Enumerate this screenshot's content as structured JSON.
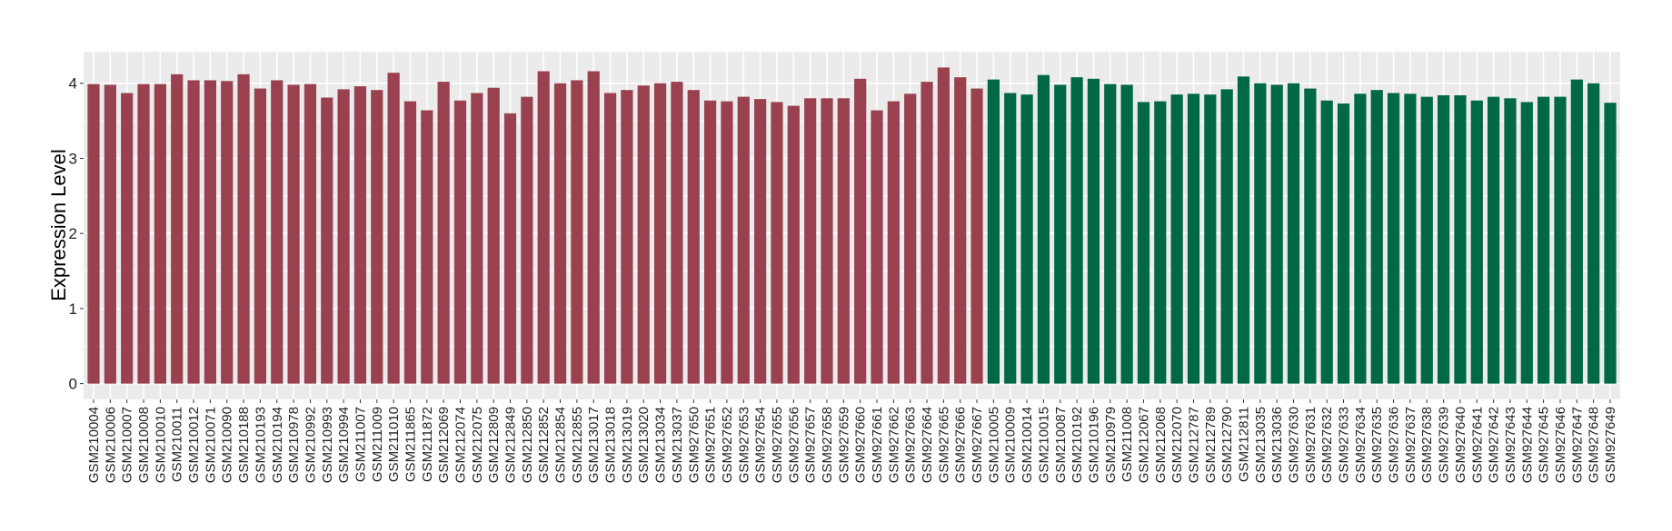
{
  "chart_data": {
    "type": "bar",
    "title": "",
    "xlabel": "",
    "ylabel": "Expression Level",
    "ylim": [
      -0.21,
      4.42
    ],
    "yticks": [
      0,
      1,
      2,
      3,
      4
    ],
    "grid": true,
    "legend": "none",
    "colors": {
      "group1": "#9A4150",
      "group2": "#006845",
      "panel": "#EBEBEB",
      "grid": "#FFFFFF"
    },
    "categories": [
      "GSM210004",
      "GSM210006",
      "GSM210007",
      "GSM210008",
      "GSM210010",
      "GSM210011",
      "GSM210012",
      "GSM210071",
      "GSM210090",
      "GSM210188",
      "GSM210193",
      "GSM210194",
      "GSM210978",
      "GSM210992",
      "GSM210993",
      "GSM210994",
      "GSM211007",
      "GSM211009",
      "GSM211010",
      "GSM211865",
      "GSM211872",
      "GSM212069",
      "GSM212074",
      "GSM212075",
      "GSM212809",
      "GSM212849",
      "GSM212850",
      "GSM212852",
      "GSM212854",
      "GSM212855",
      "GSM213017",
      "GSM213018",
      "GSM213019",
      "GSM213020",
      "GSM213034",
      "GSM213037",
      "GSM927650",
      "GSM927651",
      "GSM927652",
      "GSM927653",
      "GSM927654",
      "GSM927655",
      "GSM927656",
      "GSM927657",
      "GSM927658",
      "GSM927659",
      "GSM927660",
      "GSM927661",
      "GSM927662",
      "GSM927663",
      "GSM927664",
      "GSM927665",
      "GSM927666",
      "GSM927667",
      "GSM210005",
      "GSM210009",
      "GSM210014",
      "GSM210015",
      "GSM210087",
      "GSM210192",
      "GSM210196",
      "GSM210979",
      "GSM211008",
      "GSM212067",
      "GSM212068",
      "GSM212070",
      "GSM212787",
      "GSM212789",
      "GSM212790",
      "GSM212811",
      "GSM213035",
      "GSM213036",
      "GSM927630",
      "GSM927631",
      "GSM927632",
      "GSM927633",
      "GSM927634",
      "GSM927635",
      "GSM927636",
      "GSM927637",
      "GSM927638",
      "GSM927639",
      "GSM927640",
      "GSM927641",
      "GSM927642",
      "GSM927643",
      "GSM927644",
      "GSM927645",
      "GSM927646",
      "GSM927647",
      "GSM927648",
      "GSM927649"
    ],
    "values": [
      3.99,
      3.98,
      3.87,
      3.99,
      3.99,
      4.12,
      4.04,
      4.04,
      4.03,
      4.12,
      3.93,
      4.04,
      3.98,
      3.99,
      3.81,
      3.92,
      3.96,
      3.91,
      4.14,
      3.76,
      3.64,
      4.02,
      3.77,
      3.87,
      3.94,
      3.6,
      3.82,
      4.16,
      4.0,
      4.04,
      4.16,
      3.87,
      3.91,
      3.97,
      4.0,
      4.02,
      3.91,
      3.77,
      3.76,
      3.82,
      3.79,
      3.75,
      3.7,
      3.8,
      3.8,
      3.8,
      4.06,
      3.64,
      3.76,
      3.86,
      4.02,
      4.21,
      4.08,
      3.93,
      4.05,
      3.87,
      3.85,
      4.11,
      3.98,
      4.08,
      4.06,
      3.99,
      3.98,
      3.75,
      3.76,
      3.85,
      3.86,
      3.85,
      3.92,
      4.09,
      4.0,
      3.98,
      4.0,
      3.93,
      3.77,
      3.73,
      3.86,
      3.91,
      3.87,
      3.86,
      3.82,
      3.84,
      3.84,
      3.77,
      3.82,
      3.8,
      3.75,
      3.82,
      3.82,
      4.05,
      4.0,
      3.74
    ],
    "groups": [
      54,
      38
    ]
  }
}
